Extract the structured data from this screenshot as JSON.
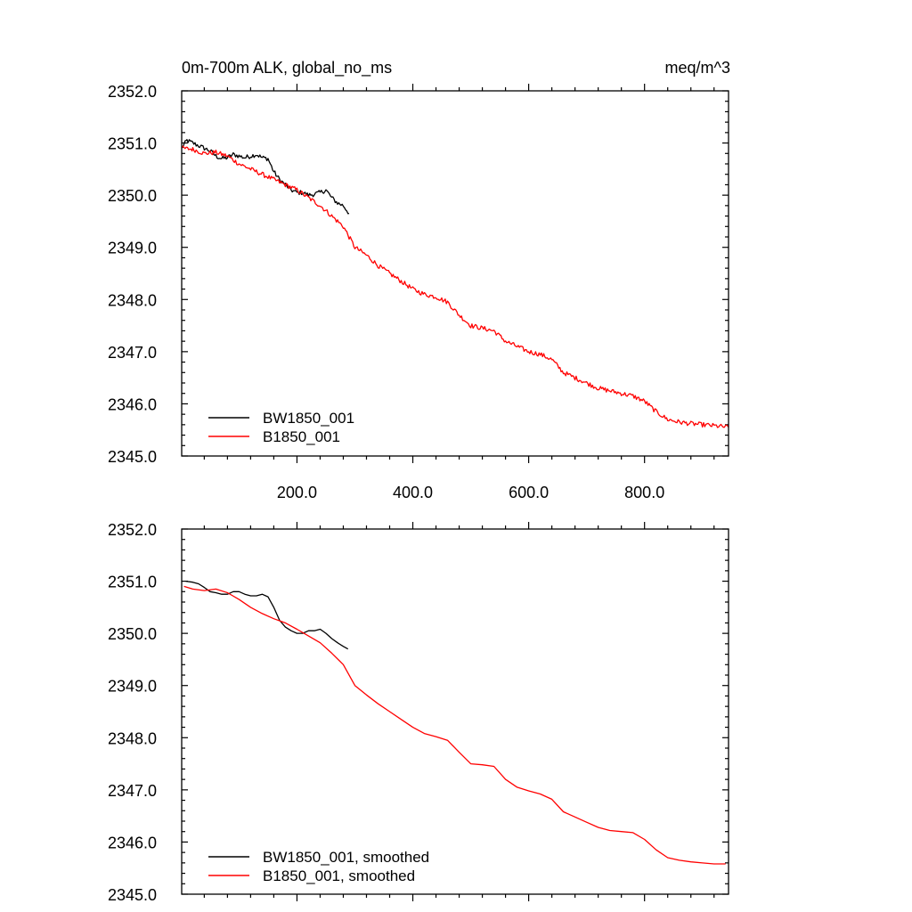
{
  "chart_data": [
    {
      "type": "line",
      "title_left": "0m-700m ALK, global_no_ms",
      "title_right": "meq/m^3",
      "xlim": [
        1,
        945
      ],
      "ylim": [
        2345.0,
        2352.0
      ],
      "x_tick_labels": [
        "200.0",
        "400.0",
        "600.0",
        "800.0"
      ],
      "x_ticks": [
        200,
        400,
        600,
        800
      ],
      "y_tick_labels": [
        "2345.0",
        "2346.0",
        "2347.0",
        "2348.0",
        "2349.0",
        "2350.0",
        "2351.0",
        "2352.0"
      ],
      "y_ticks": [
        2345,
        2346,
        2347,
        2348,
        2349,
        2350,
        2351,
        2352
      ],
      "legend_position": "bottom-left",
      "series": [
        {
          "name": "BW1850_001",
          "color": "#000000",
          "noisy": true,
          "x": [
            1,
            10,
            20,
            30,
            40,
            50,
            60,
            70,
            80,
            90,
            100,
            110,
            120,
            130,
            140,
            150,
            160,
            170,
            180,
            190,
            200,
            210,
            220,
            230,
            240,
            250,
            260,
            270,
            280,
            290
          ],
          "y": [
            2350.9,
            2351.05,
            2351.0,
            2350.95,
            2350.9,
            2350.85,
            2350.75,
            2350.7,
            2350.72,
            2350.78,
            2350.75,
            2350.72,
            2350.75,
            2350.78,
            2350.72,
            2350.7,
            2350.45,
            2350.3,
            2350.2,
            2350.1,
            2350.05,
            2350.05,
            2350.0,
            2350.02,
            2350.05,
            2350.1,
            2349.95,
            2349.85,
            2349.8,
            2349.65
          ]
        },
        {
          "name": "B1850_001",
          "color": "#ff0000",
          "noisy": true,
          "x": [
            1,
            20,
            40,
            60,
            80,
            100,
            120,
            140,
            160,
            180,
            200,
            220,
            240,
            260,
            280,
            300,
            320,
            340,
            360,
            380,
            400,
            420,
            440,
            460,
            480,
            500,
            520,
            540,
            560,
            580,
            600,
            620,
            640,
            660,
            680,
            700,
            720,
            740,
            760,
            780,
            800,
            820,
            840,
            860,
            880,
            900,
            920,
            945
          ],
          "y": [
            2350.9,
            2350.88,
            2350.8,
            2350.82,
            2350.75,
            2350.6,
            2350.5,
            2350.4,
            2350.3,
            2350.2,
            2350.1,
            2349.95,
            2349.8,
            2349.6,
            2349.4,
            2349.0,
            2348.85,
            2348.65,
            2348.5,
            2348.35,
            2348.2,
            2348.1,
            2348.05,
            2347.95,
            2347.7,
            2347.5,
            2347.45,
            2347.4,
            2347.2,
            2347.1,
            2347.0,
            2346.95,
            2346.85,
            2346.6,
            2346.5,
            2346.4,
            2346.3,
            2346.25,
            2346.2,
            2346.15,
            2346.05,
            2345.85,
            2345.7,
            2345.65,
            2345.62,
            2345.6,
            2345.58,
            2345.55
          ]
        }
      ]
    },
    {
      "type": "line",
      "xlim": [
        1,
        945
      ],
      "ylim": [
        2345.0,
        2352.0
      ],
      "x_ticks": [
        200,
        400,
        600,
        800
      ],
      "y_tick_labels": [
        "2345.0",
        "2346.0",
        "2347.0",
        "2348.0",
        "2349.0",
        "2350.0",
        "2351.0",
        "2352.0"
      ],
      "y_ticks": [
        2345,
        2346,
        2347,
        2348,
        2349,
        2350,
        2351,
        2352
      ],
      "legend_position": "bottom-left",
      "series": [
        {
          "name": "BW1850_001, smoothed",
          "color": "#000000",
          "noisy": false,
          "x": [
            8,
            20,
            30,
            40,
            50,
            60,
            70,
            80,
            90,
            100,
            110,
            120,
            130,
            140,
            150,
            160,
            170,
            180,
            190,
            200,
            210,
            220,
            230,
            240,
            250,
            260,
            270,
            280,
            288
          ],
          "y": [
            2351.0,
            2350.98,
            2350.95,
            2350.88,
            2350.8,
            2350.78,
            2350.75,
            2350.75,
            2350.8,
            2350.8,
            2350.75,
            2350.72,
            2350.72,
            2350.75,
            2350.7,
            2350.5,
            2350.25,
            2350.12,
            2350.05,
            2350.0,
            2350.0,
            2350.05,
            2350.05,
            2350.08,
            2350.0,
            2349.9,
            2349.82,
            2349.75,
            2349.7
          ]
        },
        {
          "name": "B1850_001, smoothed",
          "color": "#ff0000",
          "noisy": false,
          "x": [
            5,
            20,
            40,
            60,
            80,
            100,
            120,
            140,
            160,
            180,
            200,
            220,
            240,
            260,
            280,
            300,
            320,
            340,
            360,
            380,
            400,
            420,
            440,
            460,
            480,
            500,
            520,
            540,
            560,
            580,
            600,
            620,
            640,
            660,
            680,
            700,
            720,
            740,
            760,
            780,
            800,
            820,
            840,
            860,
            880,
            900,
            920,
            940
          ],
          "y": [
            2350.9,
            2350.85,
            2350.82,
            2350.85,
            2350.78,
            2350.65,
            2350.5,
            2350.38,
            2350.28,
            2350.2,
            2350.08,
            2349.95,
            2349.82,
            2349.62,
            2349.4,
            2349.0,
            2348.82,
            2348.65,
            2348.5,
            2348.35,
            2348.2,
            2348.08,
            2348.02,
            2347.95,
            2347.72,
            2347.5,
            2347.48,
            2347.45,
            2347.2,
            2347.05,
            2346.98,
            2346.92,
            2346.82,
            2346.58,
            2346.48,
            2346.38,
            2346.28,
            2346.22,
            2346.2,
            2346.18,
            2346.05,
            2345.85,
            2345.7,
            2345.65,
            2345.62,
            2345.6,
            2345.58,
            2345.58
          ]
        }
      ]
    }
  ]
}
